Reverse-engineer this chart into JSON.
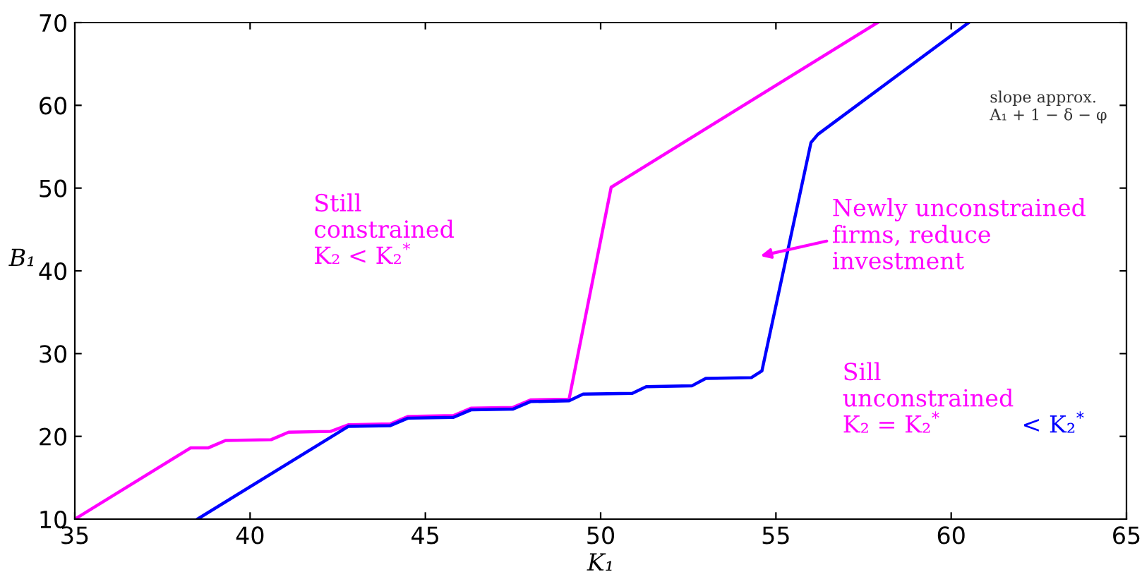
{
  "chart_data": {
    "type": "line",
    "xlabel": "K₁",
    "ylabel": "B₁",
    "xlim": [
      35,
      65
    ],
    "xticks": [
      35,
      40,
      45,
      50,
      55,
      60,
      65
    ],
    "ylim": [
      10,
      70
    ],
    "yticks": [
      10,
      20,
      30,
      40,
      50,
      60,
      70
    ],
    "grid": false,
    "series": [
      {
        "color": "#ff00ff",
        "x": [
          35,
          38.3,
          38.8,
          39.3,
          40.6,
          41.1,
          42.3,
          42.8,
          44.0,
          44.5,
          45.8,
          46.3,
          47.5,
          48.0,
          49.1,
          50.3,
          57.9
        ],
        "values": [
          10,
          18.6,
          18.6,
          19.5,
          19.6,
          20.5,
          20.6,
          21.4,
          21.5,
          22.4,
          22.5,
          23.4,
          23.5,
          24.4,
          24.5,
          50.1,
          70
        ]
      },
      {
        "color": "#0000ff",
        "x": [
          38.5,
          42.8,
          44.0,
          44.5,
          45.8,
          46.3,
          47.5,
          48.0,
          49.1,
          49.5,
          50.9,
          51.3,
          52.6,
          53.0,
          54.3,
          54.6,
          56.0,
          56.2,
          60.5
        ],
        "values": [
          10,
          21.2,
          21.3,
          22.2,
          22.3,
          23.2,
          23.3,
          24.2,
          24.3,
          25.1,
          25.2,
          26.0,
          26.1,
          27.0,
          27.1,
          27.9,
          55.5,
          56.5,
          70
        ]
      }
    ],
    "annotations": [
      "Still\nconstrained\nK₂ < K₂$^{*}$",
      "Newly unconstrained\nfirms, reduce\ninvestment",
      "Sill\nunconstrained\nK₂ = K₂$^{*}$",
      "< K₂$^{*}$",
      "slope approx.\nA₁ + 1 − δ − φ"
    ]
  }
}
